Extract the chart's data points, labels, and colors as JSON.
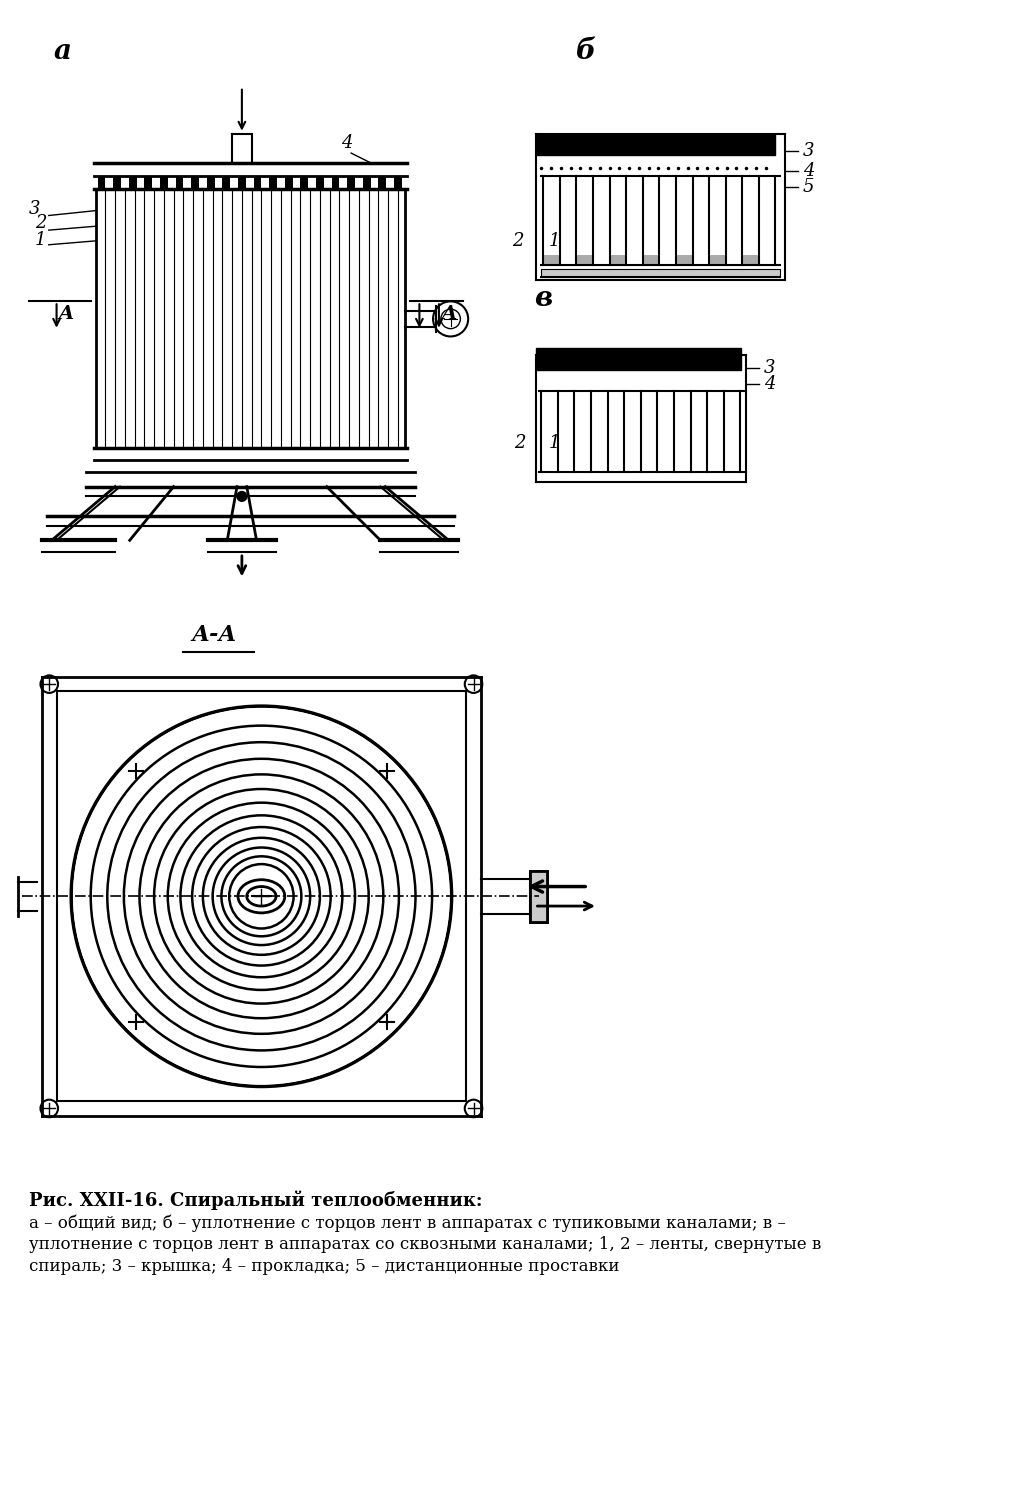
{
  "title_bold": "Рис. XXII-16. Спиральный теплообменник:",
  "caption_line1": "а – общий вид; б – уплотнение с торцов лент в аппаратах с тупиковыми каналами; в –",
  "caption_line2": "уплотнение с торцов лент в аппаратах со сквозными каналами; 1, 2 – ленты, свернутые в",
  "caption_line3": "спираль; 3 – крышка; 4 – прокладка; 5 – дистанционные проставки",
  "label_a": "а",
  "label_b": "б",
  "label_v": "в",
  "label_AA": "А-А",
  "bg_color": "#ffffff",
  "line_color": "#000000",
  "fig_width": 10.23,
  "fig_height": 15.0,
  "dpi": 100
}
